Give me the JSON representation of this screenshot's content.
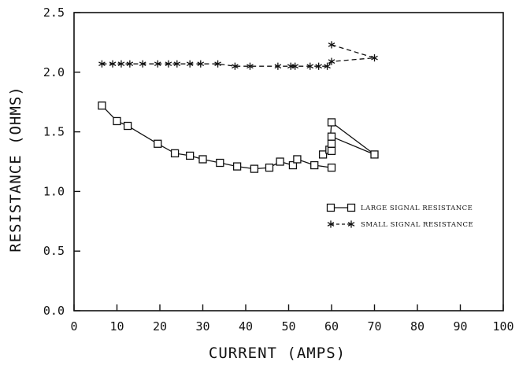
{
  "chart_data": {
    "type": "line",
    "xlabel": "CURRENT (AMPS)",
    "ylabel": "RESISTANCE (OHMS)",
    "xlim": [
      0,
      100
    ],
    "ylim": [
      0,
      2.5
    ],
    "x_ticks": [
      "0",
      "10",
      "20",
      "30",
      "40",
      "50",
      "60",
      "70",
      "80",
      "90",
      "100"
    ],
    "y_ticks": [
      "0.0",
      "0.5",
      "1.0",
      "1.5",
      "2.0",
      "2.5"
    ],
    "grid": false,
    "legend_position": "right-center",
    "series": [
      {
        "name": "LARGE SIGNAL RESISTANCE",
        "marker": "square",
        "line_style": "solid",
        "points": [
          [
            6.5,
            1.72
          ],
          [
            10,
            1.59
          ],
          [
            12.5,
            1.55
          ],
          [
            19.5,
            1.4
          ],
          [
            23.5,
            1.32
          ],
          [
            27,
            1.3
          ],
          [
            30,
            1.27
          ],
          [
            34,
            1.24
          ],
          [
            38,
            1.21
          ],
          [
            42,
            1.19
          ],
          [
            45.5,
            1.2
          ],
          [
            48,
            1.25
          ],
          [
            51,
            1.22
          ],
          [
            52,
            1.27
          ],
          [
            56,
            1.22
          ],
          [
            58,
            1.31
          ],
          [
            59.5,
            1.35
          ],
          [
            60,
            1.2
          ],
          [
            60,
            1.58
          ],
          [
            60,
            1.46
          ],
          [
            60,
            1.4
          ],
          [
            60,
            1.34
          ],
          [
            70,
            1.31
          ]
        ],
        "segments": [
          [
            [
              6.5,
              1.72
            ],
            [
              10,
              1.59
            ],
            [
              12.5,
              1.55
            ],
            [
              19.5,
              1.4
            ],
            [
              23.5,
              1.32
            ],
            [
              27,
              1.3
            ],
            [
              30,
              1.27
            ],
            [
              34,
              1.24
            ],
            [
              38,
              1.21
            ],
            [
              42,
              1.19
            ],
            [
              45.5,
              1.2
            ],
            [
              48,
              1.25
            ],
            [
              51,
              1.22
            ],
            [
              52,
              1.27
            ],
            [
              56,
              1.22
            ],
            [
              60,
              1.2
            ]
          ],
          [
            [
              58,
              1.31
            ],
            [
              59.5,
              1.35
            ],
            [
              60,
              1.58
            ],
            [
              70,
              1.31
            ]
          ],
          [
            [
              60,
              1.46
            ],
            [
              70,
              1.31
            ]
          ],
          [
            [
              60,
              1.4
            ],
            [
              60,
              1.34
            ]
          ]
        ]
      },
      {
        "name": "SMALL SIGNAL RESISTANCE",
        "marker": "asterisk",
        "line_style": "dashed",
        "points": [
          [
            6.5,
            2.07
          ],
          [
            9,
            2.07
          ],
          [
            11,
            2.07
          ],
          [
            13,
            2.07
          ],
          [
            16,
            2.07
          ],
          [
            19.5,
            2.07
          ],
          [
            22,
            2.07
          ],
          [
            24,
            2.07
          ],
          [
            27,
            2.07
          ],
          [
            29.5,
            2.07
          ],
          [
            33.5,
            2.07
          ],
          [
            37.5,
            2.05
          ],
          [
            41,
            2.05
          ],
          [
            47.5,
            2.05
          ],
          [
            50.5,
            2.05
          ],
          [
            51.5,
            2.05
          ],
          [
            55,
            2.05
          ],
          [
            57,
            2.05
          ],
          [
            59,
            2.05
          ],
          [
            60,
            2.23
          ],
          [
            60,
            2.09
          ],
          [
            70,
            2.12
          ]
        ],
        "segments": [
          [
            [
              6.5,
              2.07
            ],
            [
              9,
              2.07
            ],
            [
              11,
              2.07
            ],
            [
              13,
              2.07
            ],
            [
              16,
              2.07
            ],
            [
              19.5,
              2.07
            ],
            [
              22,
              2.07
            ],
            [
              24,
              2.07
            ],
            [
              27,
              2.07
            ],
            [
              29.5,
              2.07
            ],
            [
              33.5,
              2.07
            ],
            [
              37.5,
              2.05
            ],
            [
              41,
              2.05
            ],
            [
              47.5,
              2.05
            ],
            [
              50.5,
              2.05
            ],
            [
              51.5,
              2.05
            ],
            [
              55,
              2.05
            ],
            [
              57,
              2.05
            ],
            [
              59,
              2.05
            ],
            [
              60,
              2.09
            ]
          ],
          [
            [
              60,
              2.23
            ],
            [
              70,
              2.12
            ],
            [
              60,
              2.09
            ]
          ]
        ]
      }
    ]
  }
}
